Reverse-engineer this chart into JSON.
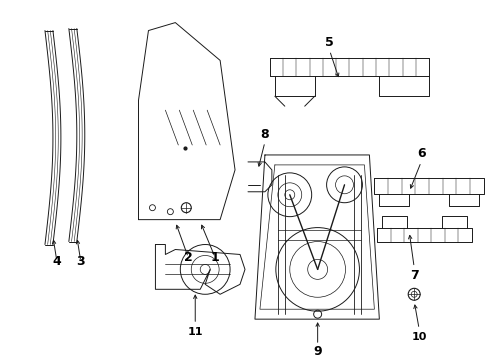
{
  "bg_color": "#ffffff",
  "line_color": "#1a1a1a",
  "label_color": "#000000",
  "lw": 0.7,
  "label_fontsize": 9,
  "figsize": [
    4.9,
    3.6
  ],
  "dpi": 100,
  "xlim": [
    0,
    490
  ],
  "ylim": [
    0,
    360
  ]
}
